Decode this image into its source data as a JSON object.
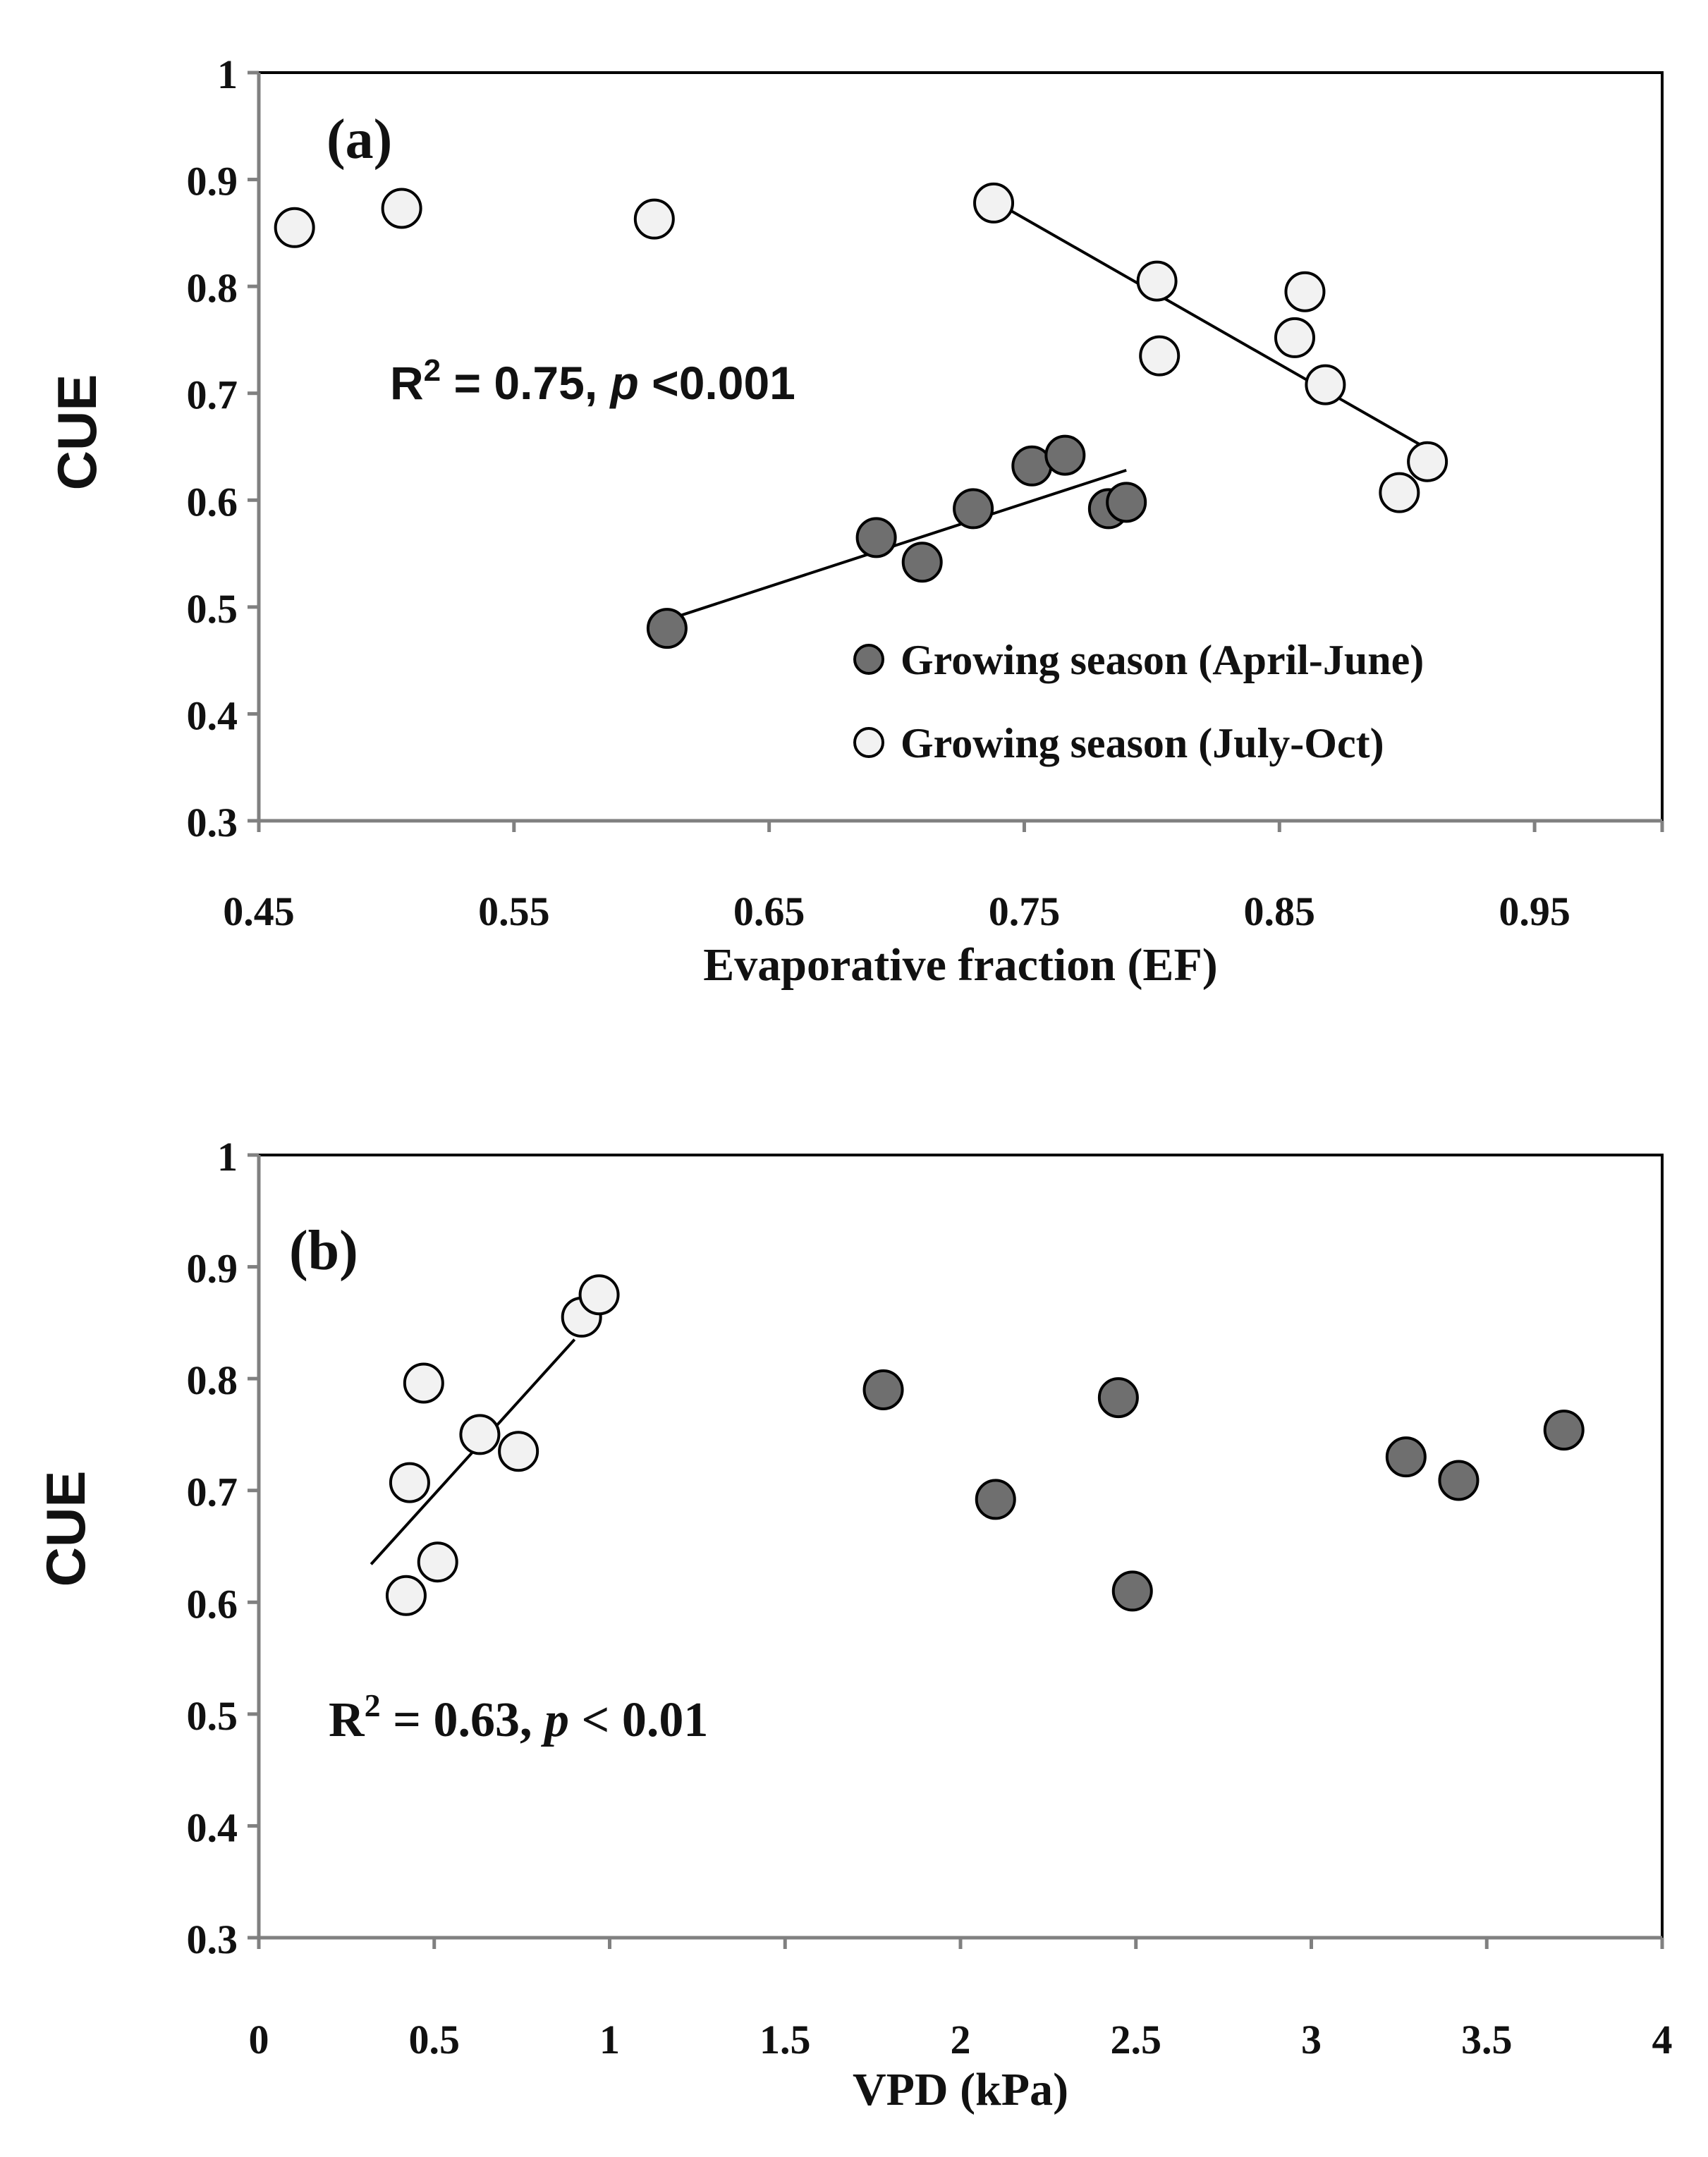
{
  "colors": {
    "growing_apr_jun_fill": "#6f6f6f",
    "growing_jul_oct_fill": "#f2f2f2",
    "marker_stroke": "#000000",
    "axis_color": "#808080",
    "frame_color": "#000000"
  },
  "chart_data": [
    {
      "type": "scatter",
      "panel": "(a)",
      "xlabel": "Evaporative fraction (EF)",
      "ylabel": "CUE",
      "xlim": [
        0.45,
        1.0
      ],
      "ylim": [
        0.3,
        1.0
      ],
      "x_ticks": [
        "0.45",
        "0.55",
        "0.65",
        "0.75",
        "0.85",
        "0.95"
      ],
      "x_tick_values": [
        0.45,
        0.55,
        0.65,
        0.75,
        0.85,
        0.95
      ],
      "y_ticks": [
        "0.3",
        "0.4",
        "0.5",
        "0.6",
        "0.7",
        "0.8",
        "0.9",
        "1"
      ],
      "y_tick_values": [
        0.3,
        0.4,
        0.5,
        0.6,
        0.7,
        0.8,
        0.9,
        1.0
      ],
      "annotation": {
        "r_label": "R",
        "r_sup": "2",
        "value_text": " = 0.75, ",
        "p_label": "p",
        "p_text": " <0.001"
      },
      "legend": {
        "position": "bottom-right",
        "entries": [
          "Growing season (April-June)",
          "Growing season (July-Oct)"
        ]
      },
      "series": [
        {
          "name": "Growing season (April-June)",
          "style": "filled",
          "points": [
            [
              0.61,
              0.48
            ],
            [
              0.692,
              0.565
            ],
            [
              0.71,
              0.542
            ],
            [
              0.73,
              0.592
            ],
            [
              0.753,
              0.632
            ],
            [
              0.766,
              0.642
            ],
            [
              0.783,
              0.592
            ],
            [
              0.79,
              0.598
            ]
          ]
        },
        {
          "name": "Growing season (July-Oct)",
          "style": "open",
          "points": [
            [
              0.464,
              0.855
            ],
            [
              0.506,
              0.873
            ],
            [
              0.605,
              0.863
            ],
            [
              0.738,
              0.878
            ],
            [
              0.802,
              0.805
            ],
            [
              0.803,
              0.735
            ],
            [
              0.856,
              0.752
            ],
            [
              0.86,
              0.795
            ],
            [
              0.868,
              0.708
            ],
            [
              0.897,
              0.607
            ],
            [
              0.908,
              0.636
            ]
          ]
        }
      ],
      "trendlines": [
        {
          "series": "Growing season (April-June)",
          "x": [
            0.61,
            0.79
          ],
          "y": [
            0.488,
            0.628
          ]
        },
        {
          "series": "Growing season (July-Oct)",
          "x": [
            0.738,
            0.908
          ],
          "y": [
            0.88,
            0.648
          ]
        }
      ]
    },
    {
      "type": "scatter",
      "panel": "(b)",
      "xlabel": "VPD (kPa)",
      "ylabel": "CUE",
      "xlim": [
        0,
        4
      ],
      "ylim": [
        0.3,
        1.0
      ],
      "x_ticks": [
        "0",
        "0.5",
        "1",
        "1.5",
        "2",
        "2.5",
        "3",
        "3.5",
        "4"
      ],
      "x_tick_values": [
        0,
        0.5,
        1,
        1.5,
        2,
        2.5,
        3,
        3.5,
        4
      ],
      "y_ticks": [
        "0.3",
        "0.4",
        "0.5",
        "0.6",
        "0.7",
        "0.8",
        "0.9",
        "1"
      ],
      "y_tick_values": [
        0.3,
        0.4,
        0.5,
        0.6,
        0.7,
        0.8,
        0.9,
        1.0
      ],
      "annotation": {
        "r_label": "R",
        "r_sup": "2",
        "value_text": " = 0.63, ",
        "p_label": "p",
        "p_text": " < 0.01"
      },
      "series": [
        {
          "name": "Growing season (April-June)",
          "style": "filled",
          "points": [
            [
              1.78,
              0.79
            ],
            [
              2.1,
              0.692
            ],
            [
              2.45,
              0.783
            ],
            [
              2.49,
              0.61
            ],
            [
              3.27,
              0.73
            ],
            [
              3.42,
              0.709
            ],
            [
              3.72,
              0.754
            ]
          ]
        },
        {
          "name": "Growing season (July-Oct)",
          "style": "open",
          "points": [
            [
              0.42,
              0.606
            ],
            [
              0.43,
              0.707
            ],
            [
              0.47,
              0.796
            ],
            [
              0.51,
              0.636
            ],
            [
              0.63,
              0.75
            ],
            [
              0.74,
              0.735
            ],
            [
              0.92,
              0.855
            ],
            [
              0.97,
              0.875
            ]
          ]
        }
      ],
      "trendlines": [
        {
          "series": "Growing season (July-Oct)",
          "x": [
            0.32,
            0.9
          ],
          "y": [
            0.634,
            0.835
          ]
        }
      ]
    }
  ]
}
